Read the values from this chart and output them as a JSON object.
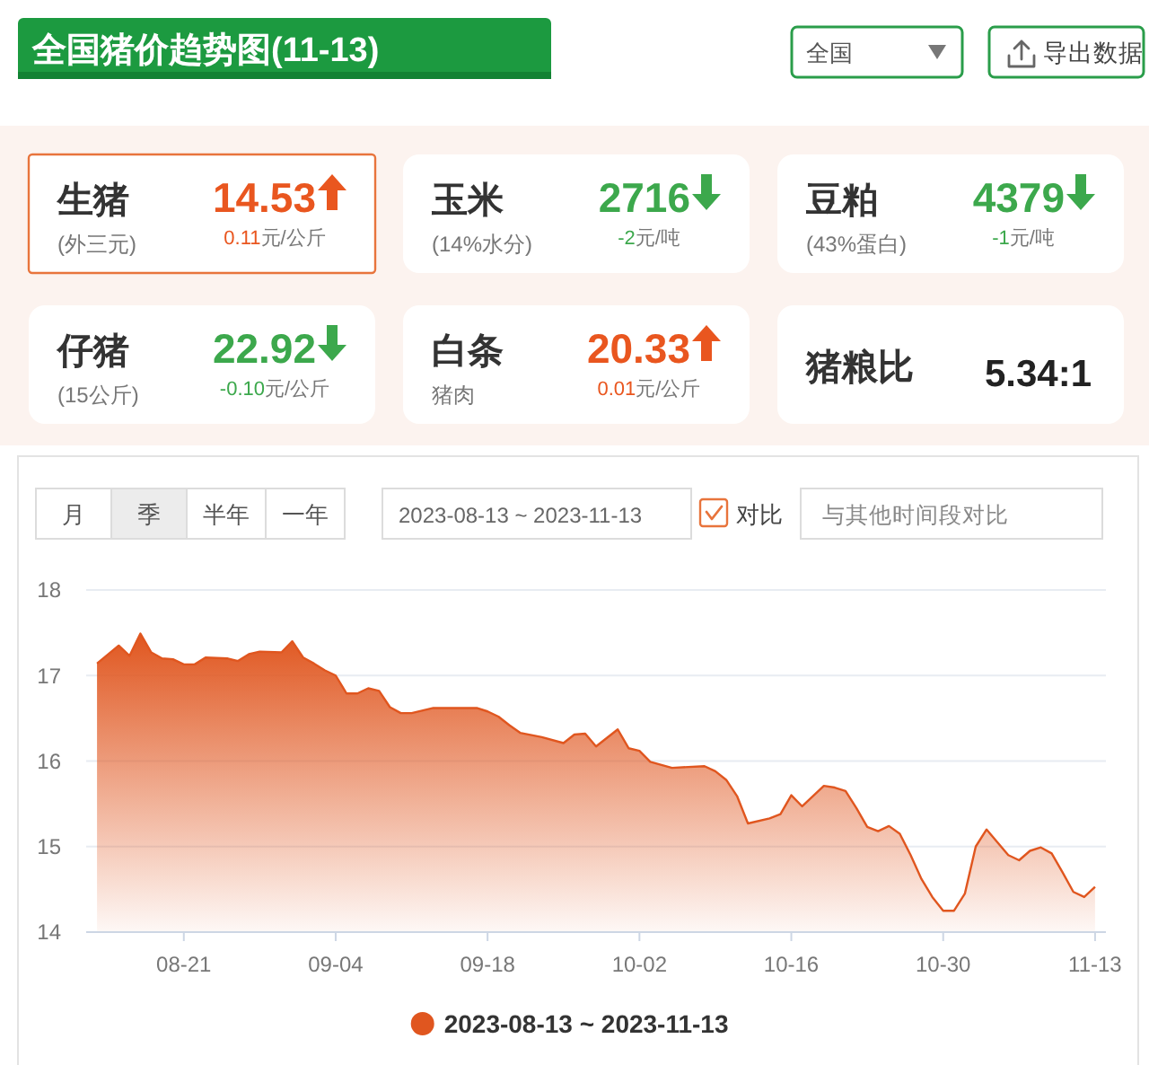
{
  "chart_data": [
    {
      "type": "other",
      "title": "全国猪价趋势图(11-13)",
      "annotations": [
        "全国",
        "导出数据"
      ]
    },
    {
      "type": "other",
      "title": "生猪",
      "subtitle": "(外三元)",
      "value_labels": [
        "14.53"
      ],
      "colors": [
        "#e9561f"
      ],
      "series": [
        {
          "values": [
            0.11
          ],
          "value_labels": [
            "0.11元/公斤"
          ]
        }
      ]
    },
    {
      "type": "other",
      "title": "玉米",
      "subtitle": "(14%水分)",
      "value_labels": [
        "2716"
      ],
      "colors": [
        "#3ca84c"
      ],
      "series": [
        {
          "values": [
            -2
          ],
          "value_labels": [
            "-2元/吨"
          ]
        }
      ]
    },
    {
      "type": "other",
      "title": "豆粕",
      "subtitle": "(43%蛋白)",
      "value_labels": [
        "4379"
      ],
      "colors": [
        "#3ca84c"
      ],
      "series": [
        {
          "values": [
            -1
          ],
          "value_labels": [
            "-1元/吨"
          ]
        }
      ]
    },
    {
      "type": "other",
      "title": "仔猪",
      "subtitle": "(15公斤)",
      "value_labels": [
        "22.92"
      ],
      "colors": [
        "#3ca84c"
      ],
      "series": [
        {
          "values": [
            -0.1
          ],
          "value_labels": [
            "-0.10元/公斤"
          ]
        }
      ]
    },
    {
      "type": "other",
      "title": "白条",
      "subtitle": "猪肉",
      "value_labels": [
        "20.33"
      ],
      "colors": [
        "#e9561f"
      ],
      "series": [
        {
          "values": [
            0.01
          ],
          "value_labels": [
            "0.01元/公斤"
          ]
        }
      ]
    },
    {
      "type": "other",
      "title": "猪粮比",
      "value_labels": [
        "5.34:1"
      ],
      "colors": [
        "#222222"
      ]
    },
    {
      "type": "area",
      "annotations": [
        "月",
        "季",
        "半年",
        "一年",
        "2023-08-13 ~ 2023-11-13",
        "对比",
        "与其他时间段对比"
      ],
      "x": [
        "2023-08-13",
        "2023-08-15",
        "2023-08-16",
        "2023-08-17",
        "2023-08-18",
        "2023-08-19",
        "2023-08-20",
        "2023-08-21",
        "2023-08-22",
        "2023-08-23",
        "2023-08-25",
        "2023-08-26",
        "2023-08-27",
        "2023-08-28",
        "2023-08-30",
        "2023-08-31",
        "2023-09-01",
        "2023-09-02",
        "2023-09-03",
        "2023-09-04",
        "2023-09-05",
        "2023-09-06",
        "2023-09-07",
        "2023-09-08",
        "2023-09-09",
        "2023-09-10",
        "2023-09-11",
        "2023-09-13",
        "2023-09-17",
        "2023-09-18",
        "2023-09-19",
        "2023-09-20",
        "2023-09-21",
        "2023-09-23",
        "2023-09-25",
        "2023-09-26",
        "2023-09-27",
        "2023-09-28",
        "2023-09-30",
        "2023-10-01",
        "2023-10-02",
        "2023-10-03",
        "2023-10-05",
        "2023-10-08",
        "2023-10-09",
        "2023-10-10",
        "2023-10-11",
        "2023-10-12",
        "2023-10-14",
        "2023-10-15",
        "2023-10-16",
        "2023-10-17",
        "2023-10-19",
        "2023-10-20",
        "2023-10-21",
        "2023-10-22",
        "2023-10-23",
        "2023-10-24",
        "2023-10-25",
        "2023-10-26",
        "2023-10-27",
        "2023-10-28",
        "2023-10-29",
        "2023-10-30",
        "2023-10-31",
        "2023-11-01",
        "2023-11-02",
        "2023-11-03",
        "2023-11-04",
        "2023-11-05",
        "2023-11-06",
        "2023-11-07",
        "2023-11-08",
        "2023-11-09",
        "2023-11-10",
        "2023-11-11",
        "2023-11-12",
        "2023-11-13"
      ],
      "series": [
        {
          "name": "2023-08-13 ~ 2023-11-13",
          "color": "#e0561f",
          "values": [
            17.14,
            17.35,
            17.23,
            17.49,
            17.27,
            17.2,
            17.19,
            17.13,
            17.13,
            17.21,
            17.2,
            17.17,
            17.25,
            17.28,
            17.27,
            17.4,
            17.21,
            17.14,
            17.06,
            17.0,
            16.79,
            16.79,
            16.85,
            16.82,
            16.63,
            16.56,
            16.56,
            16.62,
            16.62,
            16.58,
            16.52,
            16.42,
            16.33,
            16.28,
            16.21,
            16.31,
            16.32,
            16.17,
            16.37,
            16.15,
            16.12,
            15.99,
            15.92,
            15.94,
            15.88,
            15.78,
            15.59,
            15.27,
            15.33,
            15.38,
            15.6,
            15.47,
            15.71,
            15.69,
            15.65,
            15.45,
            15.23,
            15.18,
            15.24,
            15.15,
            14.9,
            14.62,
            14.41,
            14.25,
            14.25,
            14.45,
            15.0,
            15.2,
            15.05,
            14.9,
            14.84,
            14.95,
            14.99,
            14.92,
            14.7,
            14.47,
            14.41,
            14.53
          ]
        }
      ],
      "xlim": [
        "2023-08-12",
        "2023-11-14"
      ],
      "xticks": [
        {
          "value": "2023-08-21",
          "label": "08-21"
        },
        {
          "value": "2023-09-04",
          "label": "09-04"
        },
        {
          "value": "2023-09-18",
          "label": "09-18"
        },
        {
          "value": "2023-10-02",
          "label": "10-02"
        },
        {
          "value": "2023-10-16",
          "label": "10-16"
        },
        {
          "value": "2023-10-30",
          "label": "10-30"
        },
        {
          "value": "2023-11-13",
          "label": "11-13"
        }
      ],
      "ylim": [
        14,
        18
      ],
      "yticks": [
        14,
        15,
        16,
        17,
        18
      ],
      "grid": "y",
      "legend": "bottom"
    }
  ]
}
